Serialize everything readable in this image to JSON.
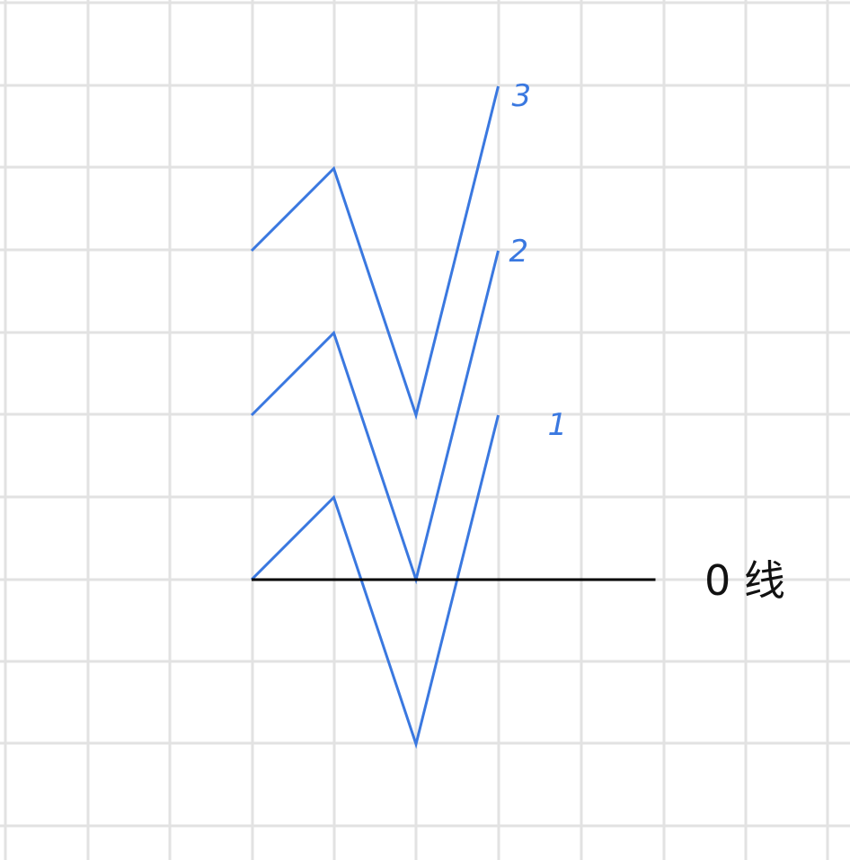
{
  "colors": {
    "background": "#ffffff",
    "grid": "#e2e2e2",
    "zigzag": "#3a78e0",
    "zero_line": "#000000",
    "zero_label": "#111111"
  },
  "zero_line_label": "0 线",
  "zigzags": [
    {
      "label": "1",
      "offset_units": 0
    },
    {
      "label": "2",
      "offset_units": 2
    },
    {
      "label": "3",
      "offset_units": 4
    }
  ],
  "zigzag_shape_units": [
    [
      0,
      0
    ],
    [
      1,
      1
    ],
    [
      2,
      -2
    ],
    [
      3,
      2
    ]
  ],
  "zero_line_extent_units": [
    0,
    5
  ]
}
